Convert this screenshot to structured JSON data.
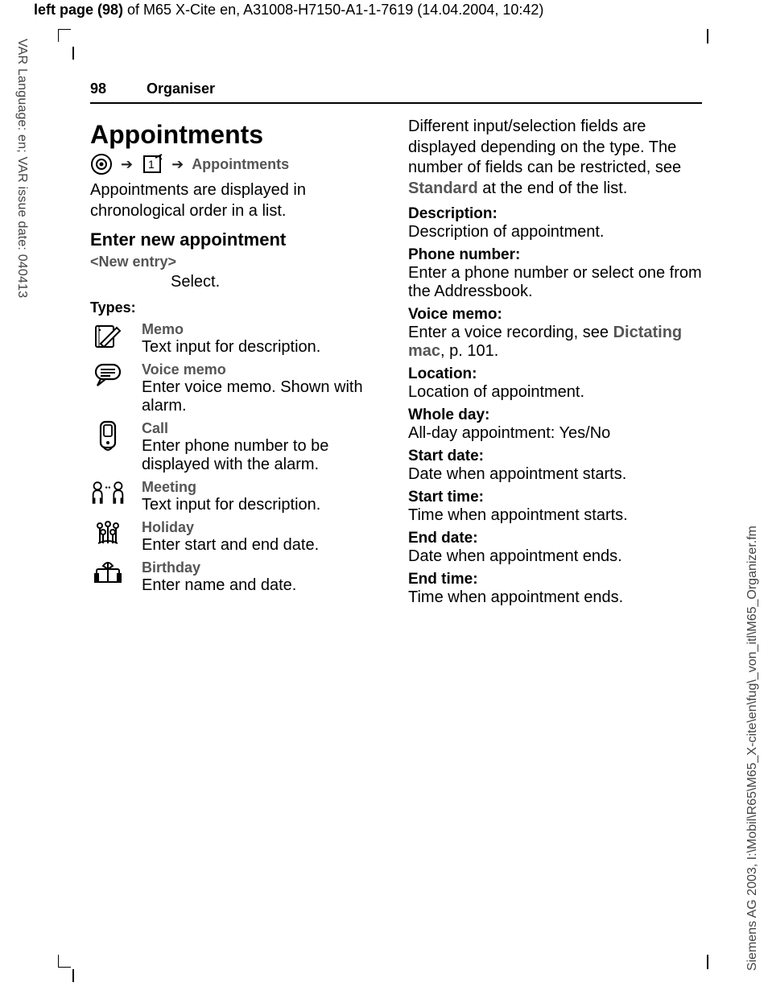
{
  "meta": {
    "top_prefix_bold": "left page (98)",
    "top_rest": " of M65 X-Cite en, A31008-H7150-A1-1-7619 (14.04.2004, 10:42)",
    "side_left": "VAR Language: en; VAR issue date: 040413",
    "side_right": "Siemens AG 2003, I:\\Mobil\\R65\\M65_X-cite\\en\\fug\\_von_itl\\M65_Organizer.fm"
  },
  "header": {
    "page_number": "98",
    "section": "Organiser"
  },
  "left": {
    "title": "Appointments",
    "nav_label": "Appointments",
    "intro": "Appointments are displayed in chronological order in a list.",
    "h2": "Enter new appointment",
    "new_entry": "<New entry>",
    "select": "Select.",
    "types_header": "Types:",
    "types": [
      {
        "icon": "memo",
        "label": "Memo",
        "desc": "Text input for description."
      },
      {
        "icon": "voice",
        "label": "Voice memo",
        "desc": "Enter voice memo. Shown with alarm."
      },
      {
        "icon": "call",
        "label": "Call",
        "desc": "Enter phone number to be displayed with the alarm."
      },
      {
        "icon": "meeting",
        "label": "Meeting",
        "desc": "Text input for description."
      },
      {
        "icon": "holiday",
        "label": "Holiday",
        "desc": "Enter start and end date."
      },
      {
        "icon": "birthday",
        "label": "Birthday",
        "desc": "Enter name and date."
      }
    ]
  },
  "right": {
    "intro1": "Different input/selection fields are displayed depending on the type. The number of fields can be restricted, see ",
    "intro_ref": "Standard",
    "intro2": " at the end of the list.",
    "fields": [
      {
        "label": "Description:",
        "desc": "Description of appointment."
      },
      {
        "label": "Phone number:",
        "desc": "Enter a phone number or select one from the Addressbook."
      },
      {
        "label": "Voice memo:",
        "desc_pre": "Enter a voice recording, see ",
        "ref": "Dictating mac",
        "desc_post": ", p. 101."
      },
      {
        "label": "Location:",
        "desc": "Location of appointment."
      },
      {
        "label": "Whole day:",
        "desc": "All-day appointment: Yes/No"
      },
      {
        "label": "Start date:",
        "desc": "Date when appointment starts."
      },
      {
        "label": "Start time:",
        "desc": "Time when appointment starts."
      },
      {
        "label": "End date:",
        "desc": "Date when appointment ends."
      },
      {
        "label": "End time:",
        "desc": "Time when appointment ends."
      }
    ]
  },
  "style": {
    "text_color": "#000000",
    "muted_color": "#555555",
    "background": "#ffffff",
    "rule_color": "#000000",
    "body_fontsize": 20,
    "label_fontsize": 18,
    "title_fontsize": 32
  }
}
